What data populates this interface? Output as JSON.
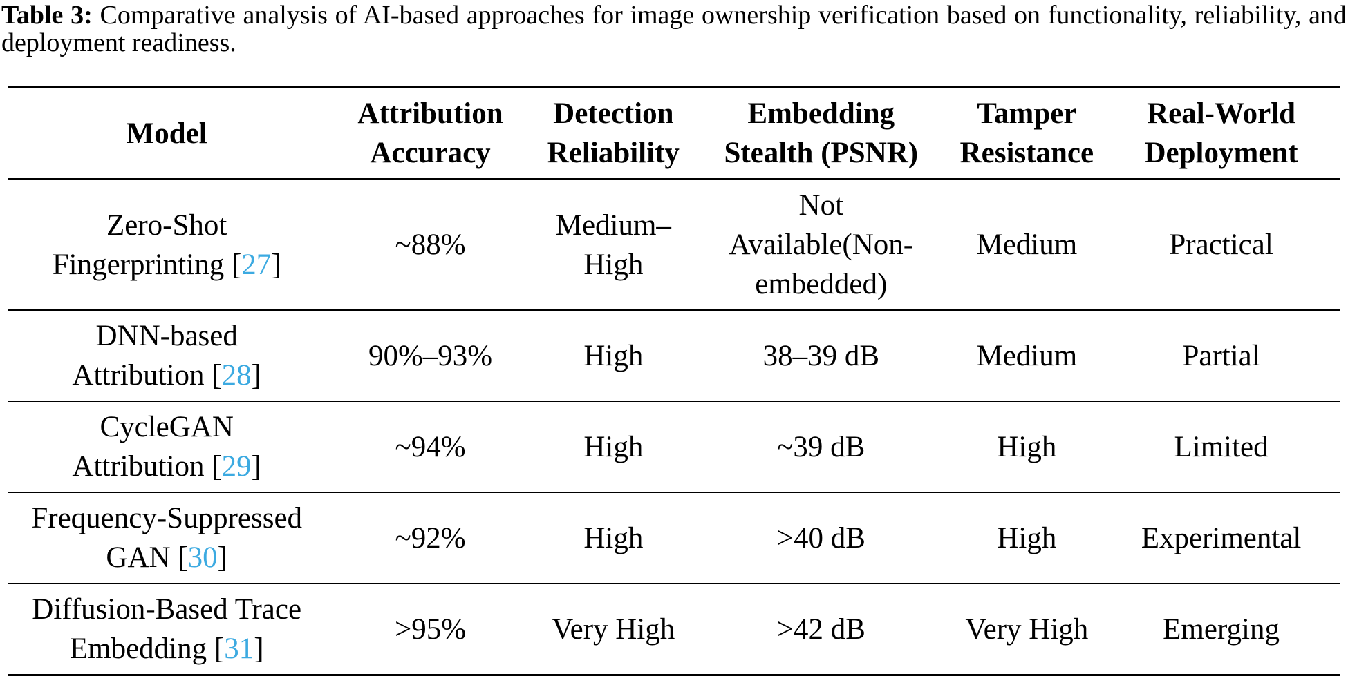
{
  "caption": {
    "label": "Table 3:",
    "text": "Comparative analysis of AI-based approaches for image ownership verification based on functionality, reliability, and deployment readiness."
  },
  "colors": {
    "citation": "#3CAAE1",
    "text": "#000000",
    "rule": "#000000",
    "background": "#ffffff"
  },
  "table": {
    "citation_open": "[",
    "citation_close": "]",
    "headers": [
      {
        "lines": [
          "Model"
        ]
      },
      {
        "lines": [
          "Attribution",
          "Accuracy"
        ]
      },
      {
        "lines": [
          "Detection",
          "Reliability"
        ]
      },
      {
        "lines": [
          "Embedding",
          "Stealth (PSNR)"
        ]
      },
      {
        "lines": [
          "Tamper",
          "Resistance"
        ]
      },
      {
        "lines": [
          "Real-World",
          "Deployment"
        ]
      }
    ],
    "rows": [
      {
        "model_lines": [
          "Zero-Shot",
          "Fingerprinting"
        ],
        "citation": "27",
        "attribution_accuracy": "~88%",
        "detection_reliability_lines": [
          "Medium–",
          "High"
        ],
        "embedding_stealth_lines": [
          "Not",
          "Available(Non-",
          "embedded)"
        ],
        "tamper_resistance": "Medium",
        "real_world_deployment": "Practical"
      },
      {
        "model_lines": [
          "DNN-based",
          "Attribution"
        ],
        "citation": "28",
        "attribution_accuracy": "90%–93%",
        "detection_reliability_lines": [
          "High"
        ],
        "embedding_stealth_lines": [
          "38–39 dB"
        ],
        "tamper_resistance": "Medium",
        "real_world_deployment": "Partial"
      },
      {
        "model_lines": [
          "CycleGAN",
          "Attribution"
        ],
        "citation": "29",
        "attribution_accuracy": "~94%",
        "detection_reliability_lines": [
          "High"
        ],
        "embedding_stealth_lines": [
          "~39 dB"
        ],
        "tamper_resistance": "High",
        "real_world_deployment": "Limited"
      },
      {
        "model_lines": [
          "Frequency-Suppressed",
          "GAN"
        ],
        "citation": "30",
        "attribution_accuracy": "~92%",
        "detection_reliability_lines": [
          "High"
        ],
        "embedding_stealth_lines": [
          ">40 dB"
        ],
        "tamper_resistance": "High",
        "real_world_deployment": "Experimental"
      },
      {
        "model_lines": [
          "Diffusion-Based Trace",
          "Embedding"
        ],
        "citation": "31",
        "attribution_accuracy": ">95%",
        "detection_reliability_lines": [
          "Very High"
        ],
        "embedding_stealth_lines": [
          ">42 dB"
        ],
        "tamper_resistance": "Very High",
        "real_world_deployment": "Emerging"
      }
    ]
  }
}
